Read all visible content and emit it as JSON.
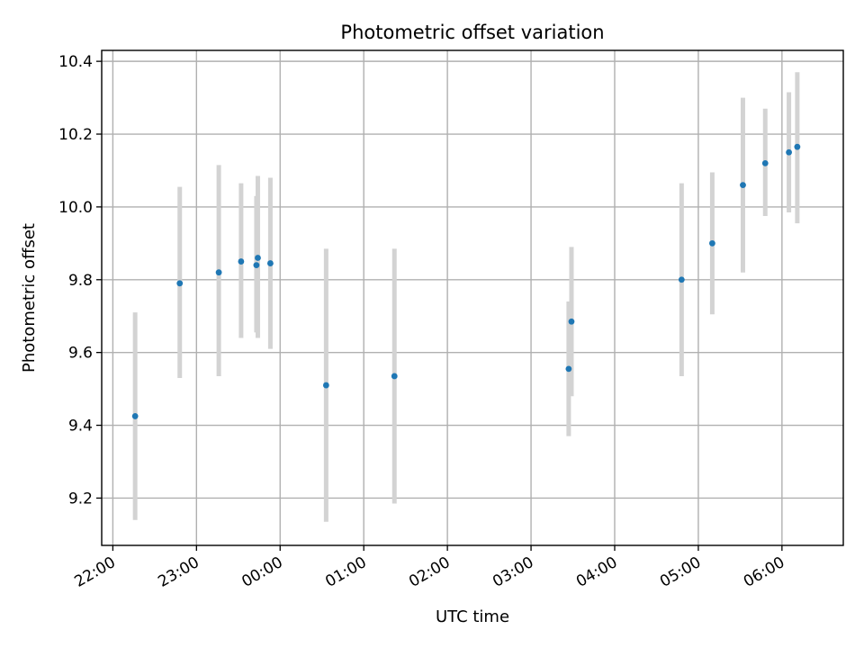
{
  "chart_data": {
    "type": "scatter",
    "title": "Photometric offset variation",
    "xlabel": "UTC time",
    "ylabel": "Photometric offset",
    "x_tick_labels": [
      "22:00",
      "23:00",
      "00:00",
      "01:00",
      "02:00",
      "03:00",
      "04:00",
      "05:00",
      "06:00"
    ],
    "y_tick_labels": [
      "9.2",
      "9.4",
      "9.6",
      "9.8",
      "10.0",
      "10.2",
      "10.4"
    ],
    "grid": true,
    "colors": {
      "point": "#1f77b4",
      "errorbar": "#d3d3d3",
      "grid": "#b0b0b0"
    },
    "points": [
      {
        "time": "22:16",
        "y": 9.425,
        "err_low": 9.14,
        "err_high": 9.71
      },
      {
        "time": "22:48",
        "y": 9.79,
        "err_low": 9.53,
        "err_high": 10.055
      },
      {
        "time": "23:16",
        "y": 9.82,
        "err_low": 9.535,
        "err_high": 10.115
      },
      {
        "time": "23:32",
        "y": 9.85,
        "err_low": 9.64,
        "err_high": 10.065
      },
      {
        "time": "23:43",
        "y": 9.84,
        "err_low": 9.655,
        "err_high": 10.03
      },
      {
        "time": "23:44",
        "y": 9.86,
        "err_low": 9.64,
        "err_high": 10.085
      },
      {
        "time": "23:53",
        "y": 9.845,
        "err_low": 9.61,
        "err_high": 10.08
      },
      {
        "time": "00:33",
        "y": 9.51,
        "err_low": 9.135,
        "err_high": 9.885
      },
      {
        "time": "01:22",
        "y": 9.535,
        "err_low": 9.185,
        "err_high": 9.885
      },
      {
        "time": "03:27",
        "y": 9.555,
        "err_low": 9.37,
        "err_high": 9.74
      },
      {
        "time": "03:29",
        "y": 9.685,
        "err_low": 9.48,
        "err_high": 9.89
      },
      {
        "time": "04:48",
        "y": 9.8,
        "err_low": 9.535,
        "err_high": 10.065
      },
      {
        "time": "05:10",
        "y": 9.9,
        "err_low": 9.705,
        "err_high": 10.095
      },
      {
        "time": "05:32",
        "y": 10.06,
        "err_low": 9.82,
        "err_high": 10.3
      },
      {
        "time": "05:48",
        "y": 10.12,
        "err_low": 9.975,
        "err_high": 10.27
      },
      {
        "time": "06:05",
        "y": 10.15,
        "err_low": 9.985,
        "err_high": 10.315
      },
      {
        "time": "06:11",
        "y": 10.165,
        "err_low": 9.955,
        "err_high": 10.37
      }
    ],
    "xlim": [
      "21:52",
      "06:44"
    ],
    "ylim": [
      9.07,
      10.43
    ]
  }
}
